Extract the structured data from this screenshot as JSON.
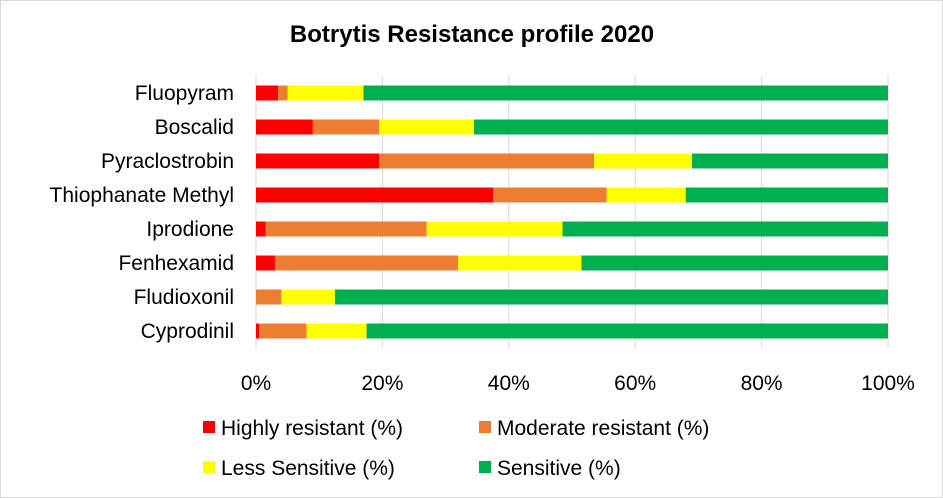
{
  "chart_data": {
    "type": "bar",
    "orientation": "horizontal",
    "stacked": "percent",
    "title": "Botrytis Resistance profile 2020",
    "xlabel": "",
    "ylabel": "",
    "xlim": [
      0,
      100
    ],
    "x_ticks": [
      "0%",
      "20%",
      "40%",
      "60%",
      "80%",
      "100%"
    ],
    "grid": true,
    "legend_position": "bottom",
    "categories": [
      "Fluopyram",
      "Boscalid",
      "Pyraclostrobin",
      "Thiophanate Methyl",
      "Iprodione",
      "Fenhexamid",
      "Fludioxonil",
      "Cyprodinil"
    ],
    "series": [
      {
        "name": "Highly resistant (%)",
        "color": "#ff0000",
        "values": [
          3.5,
          9,
          19.5,
          37.5,
          1.5,
          3,
          0,
          0.5
        ]
      },
      {
        "name": "Moderate resistant (%)",
        "color": "#ed7d31",
        "values": [
          1.5,
          10.5,
          34,
          18,
          25.5,
          29,
          4,
          7.5
        ]
      },
      {
        "name": "Less Sensitive (%)",
        "color": "#ffff00",
        "values": [
          12,
          15,
          15.5,
          12.5,
          21.5,
          19.5,
          8.5,
          9.5
        ]
      },
      {
        "name": "Sensitive (%)",
        "color": "#00b050",
        "values": [
          83,
          65.5,
          31,
          32,
          51.5,
          48.5,
          87.5,
          82.5
        ]
      }
    ]
  }
}
